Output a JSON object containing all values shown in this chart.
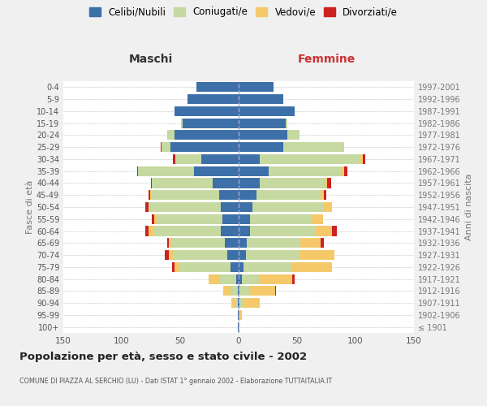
{
  "age_groups": [
    "100+",
    "95-99",
    "90-94",
    "85-89",
    "80-84",
    "75-79",
    "70-74",
    "65-69",
    "60-64",
    "55-59",
    "50-54",
    "45-49",
    "40-44",
    "35-39",
    "30-34",
    "25-29",
    "20-24",
    "15-19",
    "10-14",
    "5-9",
    "0-4"
  ],
  "birth_years": [
    "≤ 1901",
    "1902-1906",
    "1907-1911",
    "1912-1916",
    "1917-1921",
    "1922-1926",
    "1927-1931",
    "1932-1936",
    "1937-1941",
    "1942-1946",
    "1947-1951",
    "1952-1956",
    "1957-1961",
    "1962-1966",
    "1967-1971",
    "1972-1976",
    "1977-1981",
    "1982-1986",
    "1987-1991",
    "1992-1996",
    "1997-2001"
  ],
  "colors": {
    "celibi": "#3d6fa8",
    "coniugati": "#c5d9a0",
    "vedovi": "#f5c96a",
    "divorziati": "#cc2222"
  },
  "males": {
    "celibi": [
      1,
      1,
      1,
      1,
      2,
      7,
      10,
      12,
      15,
      14,
      15,
      17,
      22,
      38,
      32,
      58,
      55,
      48,
      55,
      44,
      36
    ],
    "coniugati": [
      0,
      0,
      2,
      6,
      14,
      44,
      46,
      45,
      58,
      56,
      62,
      58,
      52,
      48,
      22,
      8,
      6,
      1,
      0,
      0,
      0
    ],
    "vedovi": [
      0,
      0,
      3,
      6,
      10,
      4,
      4,
      3,
      4,
      2,
      0,
      1,
      0,
      0,
      0,
      0,
      0,
      0,
      0,
      0,
      0
    ],
    "divorziati": [
      0,
      0,
      0,
      0,
      0,
      2,
      3,
      1,
      3,
      2,
      3,
      1,
      1,
      1,
      2,
      1,
      0,
      0,
      0,
      0,
      0
    ]
  },
  "females": {
    "celibi": [
      0,
      0,
      1,
      1,
      3,
      4,
      6,
      7,
      10,
      10,
      12,
      15,
      18,
      26,
      18,
      38,
      42,
      40,
      48,
      38,
      30
    ],
    "coniugati": [
      0,
      0,
      3,
      8,
      15,
      42,
      46,
      46,
      55,
      52,
      60,
      55,
      56,
      62,
      86,
      52,
      10,
      2,
      0,
      0,
      0
    ],
    "vedovi": [
      1,
      3,
      14,
      22,
      28,
      34,
      30,
      17,
      15,
      10,
      8,
      3,
      2,
      2,
      2,
      0,
      0,
      0,
      0,
      0,
      0
    ],
    "divorziati": [
      0,
      0,
      0,
      1,
      2,
      0,
      0,
      3,
      4,
      0,
      0,
      2,
      3,
      3,
      2,
      0,
      0,
      0,
      0,
      0,
      0
    ]
  },
  "title": "Popolazione per età, sesso e stato civile - 2002",
  "subtitle": "COMUNE DI PIAZZA AL SERCHIO (LU) - Dati ISTAT 1° gennaio 2002 - Elaborazione TUTTAITALIA.IT",
  "xlabel_left": "Maschi",
  "xlabel_right": "Femmine",
  "ylabel_left": "Fasce di età",
  "ylabel_right": "Anni di nascita",
  "xlim": 150,
  "background_color": "#f0f0f0",
  "plot_bg": "#ffffff",
  "legend_labels": [
    "Celibi/Nubili",
    "Coniugati/e",
    "Vedovi/e",
    "Divorziati/e"
  ]
}
